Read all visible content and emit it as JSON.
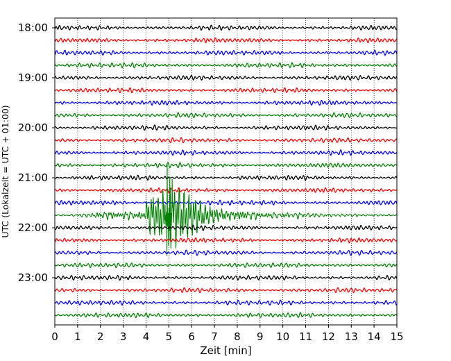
{
  "chart_data": {
    "type": "line",
    "title": "",
    "xlabel": "Zeit  [min]",
    "ylabel": "UTC (Lokalzeit = UTC + 01:00)",
    "xlim": [
      0,
      15
    ],
    "x_ticks": [
      0,
      1,
      2,
      3,
      4,
      5,
      6,
      7,
      8,
      9,
      10,
      11,
      12,
      13,
      14,
      15
    ],
    "y_ticks": [
      "18:00",
      "19:00",
      "20:00",
      "21:00",
      "22:00",
      "23:00"
    ],
    "start_time": "18:00",
    "trace_interval_min": 15,
    "trace_count": 24,
    "grid": true,
    "colors": [
      "#000000",
      "#ff0000",
      "#0000ff",
      "#008000"
    ],
    "event": {
      "trace_start": "21:45",
      "onset_min": 1.0,
      "strong_shaking_min": [
        4.0,
        7.0
      ],
      "peak_min": 5.0
    }
  }
}
